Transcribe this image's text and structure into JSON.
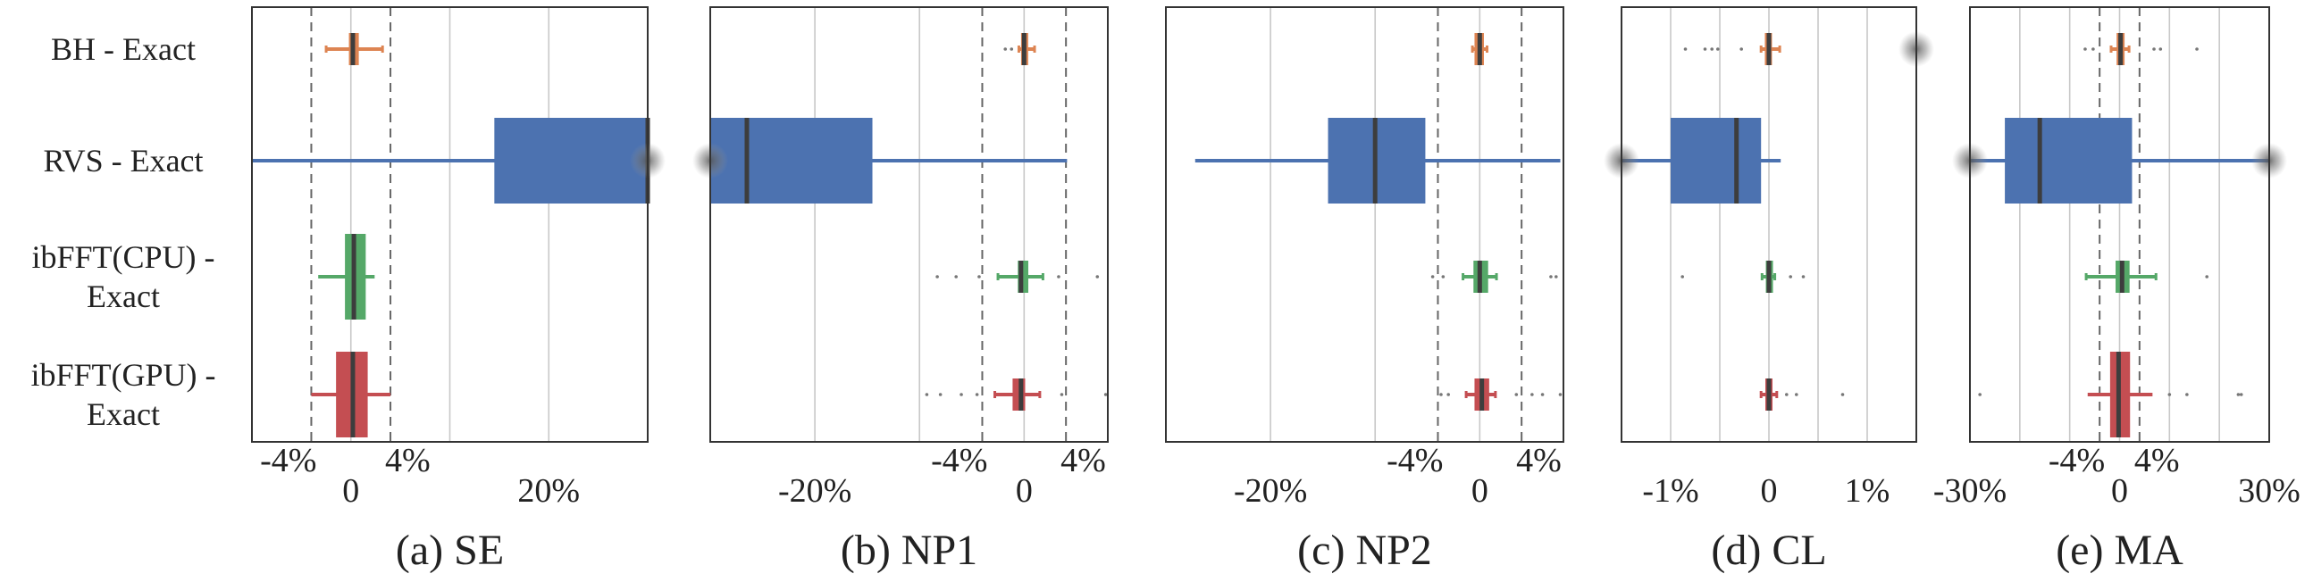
{
  "figure": {
    "row_labels": [
      [
        "BH - Exact"
      ],
      [
        "RVS - Exact"
      ],
      [
        "ibFFT(CPU) -",
        "Exact"
      ],
      [
        "ibFFT(GPU) -",
        "Exact"
      ]
    ]
  },
  "chart_data": [
    {
      "type": "box",
      "panel": "a",
      "caption": "(a) SE",
      "xlim": [
        -0.1,
        0.3
      ],
      "ticks": [
        -0.04,
        0,
        0.04,
        0.2
      ],
      "tick_labels": [
        "-4%",
        "0",
        "4%",
        "20%"
      ],
      "gridlines": [
        0,
        0.1,
        0.2
      ],
      "dashed_lines": [
        -0.04,
        0.04
      ],
      "series": [
        {
          "row": "BH - Exact",
          "color": "#DD8452",
          "q1": -0.002,
          "median": 0.002,
          "q3": 0.008,
          "whisker_low": -0.025,
          "whisker_high": 0.032,
          "outliers": []
        },
        {
          "row": "RVS - Exact",
          "color": "#4C72B0",
          "q1": 0.145,
          "median": 0.3,
          "q3": 0.3,
          "whisker_low": -0.1,
          "whisker_high": 0.3,
          "outliers": [
            0.3
          ]
        },
        {
          "row": "ibFFT(CPU) - Exact",
          "color": "#55A868",
          "q1": -0.006,
          "median": 0.003,
          "q3": 0.015,
          "whisker_low": -0.033,
          "whisker_high": 0.024,
          "outliers": []
        },
        {
          "row": "ibFFT(GPU) - Exact",
          "color": "#C44E52",
          "q1": -0.015,
          "median": 0.002,
          "q3": 0.017,
          "whisker_low": -0.04,
          "whisker_high": 0.04,
          "outliers": []
        }
      ]
    },
    {
      "type": "box",
      "panel": "b",
      "caption": "(b) NP1",
      "xlim": [
        -0.3,
        0.08
      ],
      "ticks": [
        -0.2,
        -0.04,
        0,
        0.04
      ],
      "tick_labels": [
        "-20%",
        "-4%",
        "0",
        "4%"
      ],
      "gridlines": [
        -0.2,
        -0.1,
        0
      ],
      "dashed_lines": [
        -0.04,
        0.04
      ],
      "series": [
        {
          "row": "BH - Exact",
          "color": "#DD8452",
          "q1": -0.001,
          "median": 0.0,
          "q3": 0.002,
          "whisker_low": -0.005,
          "whisker_high": 0.01,
          "outliers": [
            -0.018,
            -0.012
          ]
        },
        {
          "row": "RVS - Exact",
          "color": "#4C72B0",
          "q1": -0.3,
          "median": -0.265,
          "q3": -0.145,
          "whisker_low": -0.3,
          "whisker_high": 0.041,
          "outliers": [
            -0.3
          ]
        },
        {
          "row": "ibFFT(CPU) - Exact",
          "color": "#55A868",
          "q1": -0.006,
          "median": -0.003,
          "q3": 0.004,
          "whisker_low": -0.025,
          "whisker_high": 0.018,
          "outliers": [
            -0.083,
            -0.065,
            -0.043,
            0.033,
            0.07
          ]
        },
        {
          "row": "ibFFT(GPU) - Exact",
          "color": "#C44E52",
          "q1": -0.011,
          "median": -0.003,
          "q3": 0.001,
          "whisker_low": -0.028,
          "whisker_high": 0.015,
          "outliers": [
            -0.093,
            -0.08,
            -0.06,
            -0.045,
            0.036,
            0.078
          ]
        }
      ]
    },
    {
      "type": "box",
      "panel": "c",
      "caption": "(c) NP2",
      "xlim": [
        -0.3,
        0.08
      ],
      "ticks": [
        -0.2,
        -0.04,
        0,
        0.04
      ],
      "tick_labels": [
        "-20%",
        "-4%",
        "0",
        "4%"
      ],
      "gridlines": [
        -0.2,
        -0.1,
        0
      ],
      "dashed_lines": [
        -0.04,
        0.04
      ],
      "series": [
        {
          "row": "BH - Exact",
          "color": "#DD8452",
          "q1": -0.005,
          "median": 0.0,
          "q3": 0.004,
          "whisker_low": -0.007,
          "whisker_high": 0.007,
          "outliers": []
        },
        {
          "row": "RVS - Exact",
          "color": "#4C72B0",
          "q1": -0.145,
          "median": -0.1,
          "q3": -0.052,
          "whisker_low": -0.272,
          "whisker_high": 0.077,
          "outliers": []
        },
        {
          "row": "ibFFT(CPU) - Exact",
          "color": "#55A868",
          "q1": -0.006,
          "median": 0.0,
          "q3": 0.008,
          "whisker_low": -0.016,
          "whisker_high": 0.016,
          "outliers": [
            -0.045,
            -0.035,
            0.068,
            0.073
          ]
        },
        {
          "row": "ibFFT(GPU) - Exact",
          "color": "#C44E52",
          "q1": -0.005,
          "median": 0.002,
          "q3": 0.009,
          "whisker_low": -0.013,
          "whisker_high": 0.015,
          "outliers": [
            -0.037,
            -0.03,
            0.035,
            0.05,
            0.06,
            0.077
          ]
        }
      ]
    },
    {
      "type": "box",
      "panel": "d",
      "caption": "(d) CL",
      "xlim": [
        -0.015,
        0.015
      ],
      "ticks": [
        -0.01,
        0,
        0.01
      ],
      "tick_labels": [
        "-1%",
        "0",
        "1%"
      ],
      "gridlines": [
        -0.01,
        -0.005,
        0,
        0.005,
        0.01
      ],
      "dashed_lines": [],
      "series": [
        {
          "row": "BH - Exact",
          "color": "#DD8452",
          "q1": -0.0003,
          "median": 0.0,
          "q3": 0.0002,
          "whisker_low": -0.0008,
          "whisker_high": 0.0011,
          "outliers": [
            -0.0085,
            -0.0065,
            -0.0058,
            -0.0052,
            -0.0028,
            0.015
          ]
        },
        {
          "row": "RVS - Exact",
          "color": "#4C72B0",
          "q1": -0.01,
          "median": -0.0033,
          "q3": -0.0008,
          "whisker_low": -0.015,
          "whisker_high": 0.0012,
          "outliers": [
            -0.015
          ]
        },
        {
          "row": "ibFFT(CPU) - Exact",
          "color": "#55A868",
          "q1": -0.0001,
          "median": 0.0,
          "q3": 0.0002,
          "whisker_low": -0.0007,
          "whisker_high": 0.0006,
          "outliers": [
            -0.0088,
            0.0022,
            0.0035
          ]
        },
        {
          "row": "ibFFT(GPU) - Exact",
          "color": "#C44E52",
          "q1": -0.0002,
          "median": 0.0,
          "q3": 0.0002,
          "whisker_low": -0.0008,
          "whisker_high": 0.0008,
          "outliers": [
            0.0018,
            0.0028,
            0.0075
          ]
        }
      ]
    },
    {
      "type": "box",
      "panel": "e",
      "caption": "(e) MA",
      "xlim": [
        -0.3,
        0.3
      ],
      "ticks": [
        -0.3,
        -0.04,
        0,
        0.04,
        0.3
      ],
      "tick_labels": [
        "-30%",
        "-4%",
        "0",
        "4%",
        "30%"
      ],
      "gridlines": [
        -0.2,
        -0.1,
        0,
        0.1,
        0.2
      ],
      "dashed_lines": [
        -0.04,
        0.04
      ],
      "series": [
        {
          "row": "BH - Exact",
          "color": "#DD8452",
          "q1": -0.006,
          "median": 0.002,
          "q3": 0.01,
          "whisker_low": -0.017,
          "whisker_high": 0.019,
          "outliers": [
            -0.069,
            -0.053,
            0.069,
            0.082,
            0.155
          ]
        },
        {
          "row": "RVS - Exact",
          "color": "#4C72B0",
          "q1": -0.23,
          "median": -0.16,
          "q3": 0.025,
          "whisker_low": -0.3,
          "whisker_high": 0.3,
          "outliers": [
            -0.3,
            0.3
          ]
        },
        {
          "row": "ibFFT(CPU) - Exact",
          "color": "#55A868",
          "q1": -0.008,
          "median": 0.005,
          "q3": 0.02,
          "whisker_low": -0.067,
          "whisker_high": 0.073,
          "outliers": [
            0.175
          ]
        },
        {
          "row": "ibFFT(GPU) - Exact",
          "color": "#C44E52",
          "q1": -0.019,
          "median": -0.002,
          "q3": 0.021,
          "whisker_low": -0.064,
          "whisker_high": 0.066,
          "outliers": [
            -0.28,
            0.1,
            0.135,
            0.238,
            0.244
          ]
        }
      ]
    }
  ]
}
